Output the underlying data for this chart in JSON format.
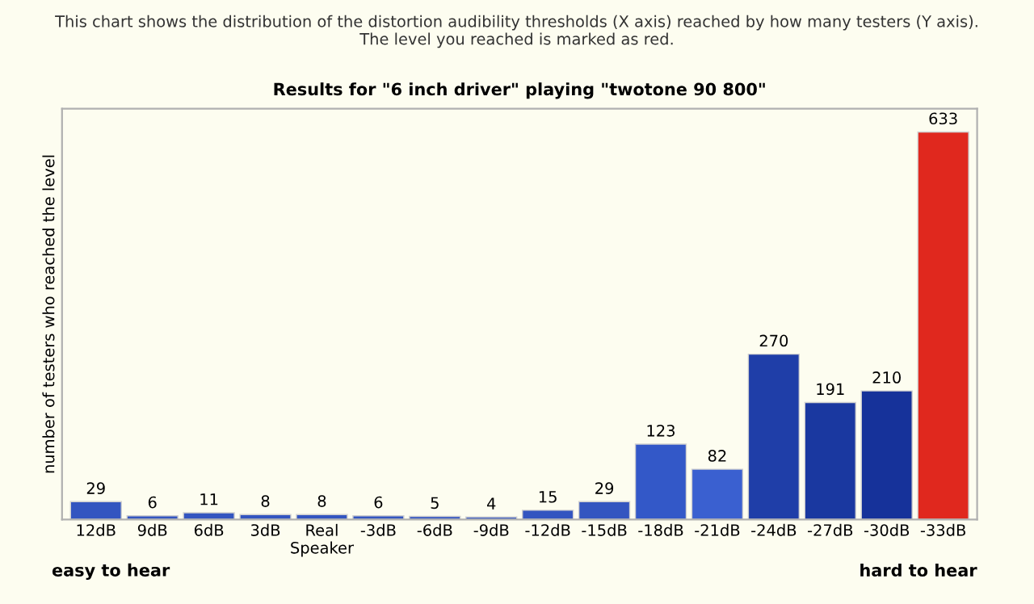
{
  "chart_data": {
    "type": "bar",
    "title": "Results for \"6 inch driver\" playing \"twotone 90 800\"",
    "subtitle": "This chart shows the distribution of the distortion audibility thresholds (X axis) reached by how many testers (Y axis).\nThe level you reached is marked as red.",
    "ylabel": "number of testers who reached the level",
    "categories": [
      "12dB",
      "9dB",
      "6dB",
      "3dB",
      "Real\nSpeaker",
      "-3dB",
      "-6dB",
      "-9dB",
      "-12dB",
      "-15dB",
      "-18dB",
      "-21dB",
      "-24dB",
      "-27dB",
      "-30dB",
      "-33dB"
    ],
    "values": [
      29,
      6,
      11,
      8,
      8,
      6,
      5,
      4,
      15,
      29,
      123,
      82,
      270,
      191,
      210,
      633
    ],
    "colors": [
      "#3355c0",
      "#3355c0",
      "#3355c0",
      "#3355c0",
      "#3355c0",
      "#3355c0",
      "#3355c0",
      "#3355c0",
      "#3355c0",
      "#3355c0",
      "#3358c8",
      "#3a60d0",
      "#1f3ea8",
      "#1a38a0",
      "#16329a",
      "#e0281e"
    ],
    "data_labels": true,
    "annotations": [
      "easy to hear",
      "hard to hear"
    ]
  }
}
